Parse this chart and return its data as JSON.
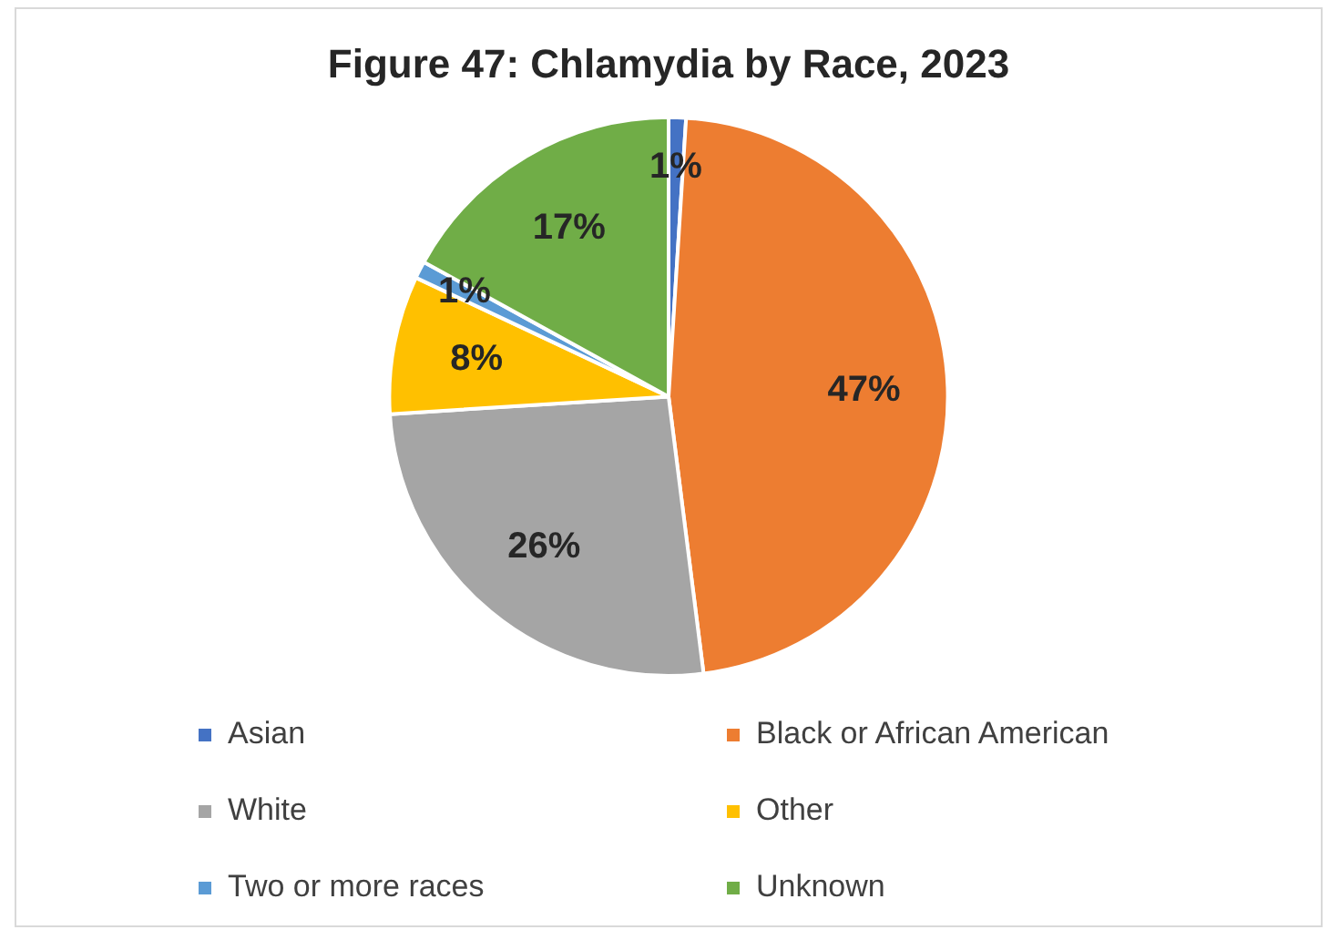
{
  "chart_data": {
    "type": "pie",
    "title": "Figure 47: Chlamydia by Race, 2023",
    "categories": [
      "Asian",
      "Black or African American",
      "White",
      "Other",
      "Two or more races",
      "Unknown"
    ],
    "values": [
      1,
      47,
      26,
      8,
      1,
      17
    ],
    "colors": [
      "#4472c4",
      "#ed7d31",
      "#a5a5a5",
      "#ffc000",
      "#5b9bd5",
      "#70ad47"
    ],
    "value_labels": [
      "1%",
      "47%",
      "26%",
      "8%",
      "1%",
      "17%"
    ],
    "legend": "bottom"
  }
}
